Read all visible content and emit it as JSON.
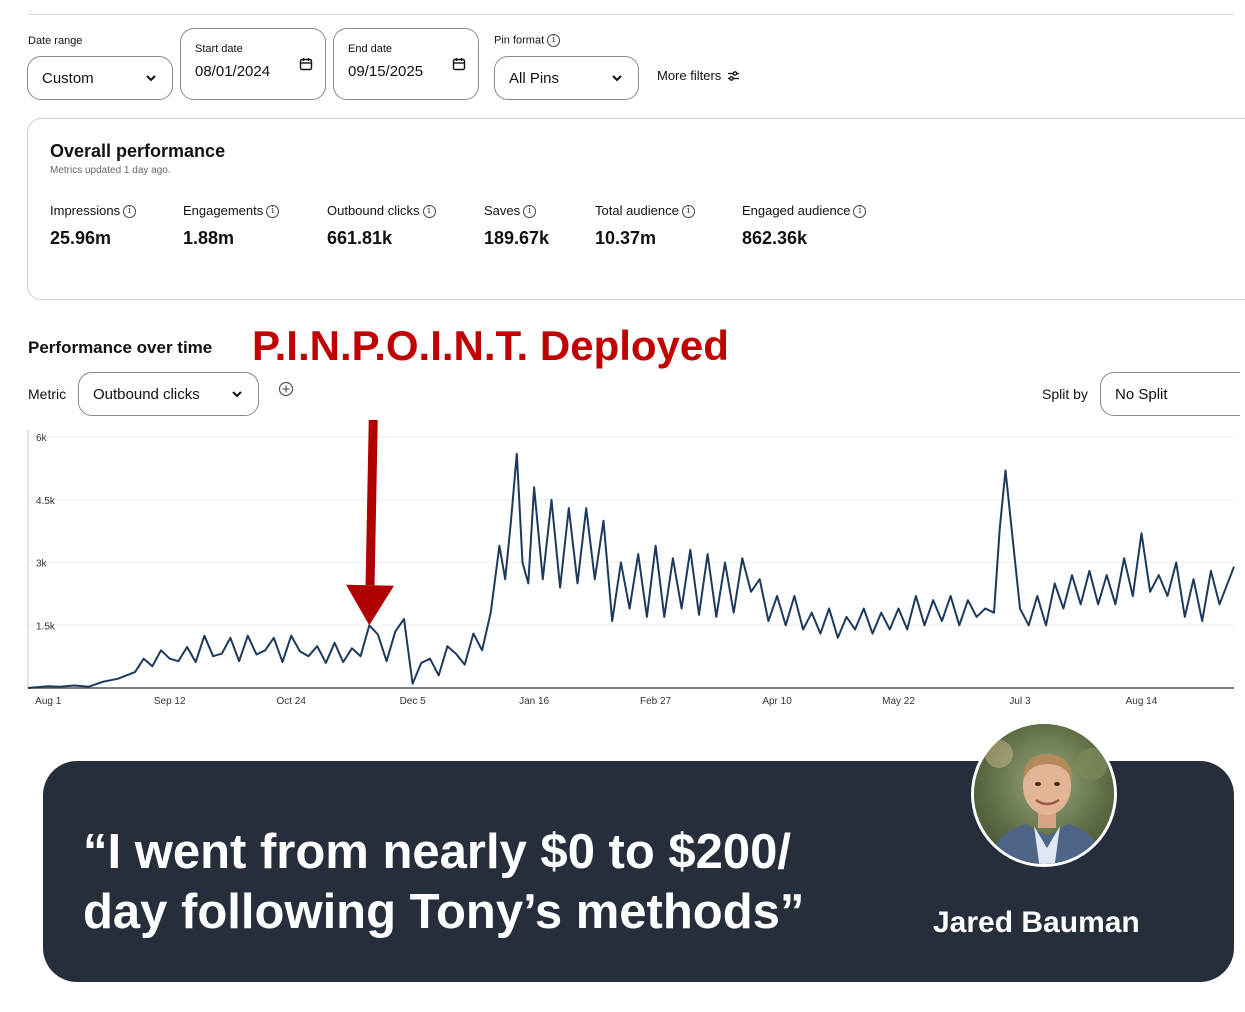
{
  "filters": {
    "date_range_label": "Date range",
    "date_range_value": "Custom",
    "start_date_label": "Start date",
    "start_date_value": "08/01/2024",
    "end_date_label": "End date",
    "end_date_value": "09/15/2025",
    "pin_format_label": "Pin format",
    "pin_format_value": "All Pins",
    "more_filters_label": "More filters"
  },
  "overall": {
    "title": "Overall performance",
    "subtitle": "Metrics updated 1 day ago.",
    "metrics": [
      {
        "label": "Impressions",
        "value": "25.96m"
      },
      {
        "label": "Engagements",
        "value": "1.88m"
      },
      {
        "label": "Outbound clicks",
        "value": "661.81k"
      },
      {
        "label": "Saves",
        "value": "189.67k"
      },
      {
        "label": "Total audience",
        "value": "10.37m"
      },
      {
        "label": "Engaged audience",
        "value": "862.36k"
      }
    ]
  },
  "over_time": {
    "title": "Performance over time",
    "metric_label": "Metric",
    "metric_value": "Outbound clicks",
    "split_label": "Split by",
    "split_value": "No Split"
  },
  "annotation": {
    "headline": "P.I.N.P.O.I.N.T. Deployed",
    "arrow_color": "#b00000"
  },
  "testimonial": {
    "quote_line1": "“I went from nearly $0 to $200/",
    "quote_line2": "day following Tony’s methods”",
    "name": "Jared Bauman"
  },
  "chart_data": {
    "type": "line",
    "x_tick_labels": [
      "Aug 1",
      "Sep 12",
      "Oct 24",
      "Dec 5",
      "Jan 16",
      "Feb 27",
      "Apr 10",
      "May 22",
      "Jul 3",
      "Aug 14"
    ],
    "y_tick_labels": [
      "1.5k",
      "3k",
      "4.5k",
      "6k"
    ],
    "ylim": [
      0,
      6000
    ],
    "x_start": "2024-07-25",
    "x_end": "2025-09-15",
    "grid": true,
    "line_color": "#1d3a5c",
    "annotation_date": "2024-11-20",
    "annotation_value": 1500,
    "series": [
      {
        "name": "Outbound clicks",
        "points": [
          [
            "2024-07-25",
            0
          ],
          [
            "2024-08-01",
            40
          ],
          [
            "2024-08-05",
            30
          ],
          [
            "2024-08-10",
            60
          ],
          [
            "2024-08-15",
            30
          ],
          [
            "2024-08-20",
            150
          ],
          [
            "2024-08-25",
            220
          ],
          [
            "2024-08-28",
            300
          ],
          [
            "2024-08-31",
            380
          ],
          [
            "2024-09-03",
            700
          ],
          [
            "2024-09-06",
            520
          ],
          [
            "2024-09-09",
            900
          ],
          [
            "2024-09-12",
            700
          ],
          [
            "2024-09-15",
            640
          ],
          [
            "2024-09-18",
            980
          ],
          [
            "2024-09-21",
            620
          ],
          [
            "2024-09-24",
            1250
          ],
          [
            "2024-09-27",
            760
          ],
          [
            "2024-09-30",
            820
          ],
          [
            "2024-10-03",
            1200
          ],
          [
            "2024-10-06",
            640
          ],
          [
            "2024-10-09",
            1250
          ],
          [
            "2024-10-12",
            800
          ],
          [
            "2024-10-15",
            900
          ],
          [
            "2024-10-18",
            1200
          ],
          [
            "2024-10-21",
            620
          ],
          [
            "2024-10-24",
            1250
          ],
          [
            "2024-10-27",
            880
          ],
          [
            "2024-10-30",
            760
          ],
          [
            "2024-11-02",
            1000
          ],
          [
            "2024-11-05",
            600
          ],
          [
            "2024-11-08",
            1080
          ],
          [
            "2024-11-11",
            620
          ],
          [
            "2024-11-14",
            950
          ],
          [
            "2024-11-17",
            760
          ],
          [
            "2024-11-20",
            1500
          ],
          [
            "2024-11-23",
            1280
          ],
          [
            "2024-11-26",
            640
          ],
          [
            "2024-11-29",
            1350
          ],
          [
            "2024-12-02",
            1650
          ],
          [
            "2024-12-05",
            100
          ],
          [
            "2024-12-08",
            600
          ],
          [
            "2024-12-11",
            700
          ],
          [
            "2024-12-14",
            300
          ],
          [
            "2024-12-17",
            1000
          ],
          [
            "2024-12-20",
            820
          ],
          [
            "2024-12-23",
            560
          ],
          [
            "2024-12-26",
            1300
          ],
          [
            "2024-12-29",
            900
          ],
          [
            "2025-01-01",
            1800
          ],
          [
            "2025-01-04",
            3400
          ],
          [
            "2025-01-06",
            2600
          ],
          [
            "2025-01-08",
            4000
          ],
          [
            "2025-01-10",
            5600
          ],
          [
            "2025-01-12",
            3000
          ],
          [
            "2025-01-14",
            2500
          ],
          [
            "2025-01-16",
            4800
          ],
          [
            "2025-01-19",
            2600
          ],
          [
            "2025-01-22",
            4500
          ],
          [
            "2025-01-25",
            2400
          ],
          [
            "2025-01-28",
            4300
          ],
          [
            "2025-01-31",
            2500
          ],
          [
            "2025-02-03",
            4300
          ],
          [
            "2025-02-06",
            2600
          ],
          [
            "2025-02-09",
            4000
          ],
          [
            "2025-02-12",
            1600
          ],
          [
            "2025-02-15",
            3000
          ],
          [
            "2025-02-18",
            1900
          ],
          [
            "2025-02-21",
            3200
          ],
          [
            "2025-02-24",
            1700
          ],
          [
            "2025-02-27",
            3400
          ],
          [
            "2025-03-02",
            1700
          ],
          [
            "2025-03-05",
            3100
          ],
          [
            "2025-03-08",
            1900
          ],
          [
            "2025-03-11",
            3300
          ],
          [
            "2025-03-14",
            1750
          ],
          [
            "2025-03-17",
            3200
          ],
          [
            "2025-03-20",
            1700
          ],
          [
            "2025-03-23",
            3000
          ],
          [
            "2025-03-26",
            1800
          ],
          [
            "2025-03-29",
            3100
          ],
          [
            "2025-04-01",
            2300
          ],
          [
            "2025-04-04",
            2600
          ],
          [
            "2025-04-07",
            1600
          ],
          [
            "2025-04-10",
            2200
          ],
          [
            "2025-04-13",
            1500
          ],
          [
            "2025-04-16",
            2200
          ],
          [
            "2025-04-19",
            1400
          ],
          [
            "2025-04-22",
            1800
          ],
          [
            "2025-04-25",
            1300
          ],
          [
            "2025-04-28",
            1900
          ],
          [
            "2025-05-01",
            1200
          ],
          [
            "2025-05-04",
            1700
          ],
          [
            "2025-05-07",
            1400
          ],
          [
            "2025-05-10",
            1900
          ],
          [
            "2025-05-13",
            1300
          ],
          [
            "2025-05-16",
            1800
          ],
          [
            "2025-05-19",
            1400
          ],
          [
            "2025-05-22",
            1900
          ],
          [
            "2025-05-25",
            1400
          ],
          [
            "2025-05-28",
            2200
          ],
          [
            "2025-05-31",
            1500
          ],
          [
            "2025-06-03",
            2100
          ],
          [
            "2025-06-06",
            1600
          ],
          [
            "2025-06-09",
            2200
          ],
          [
            "2025-06-12",
            1500
          ],
          [
            "2025-06-15",
            2100
          ],
          [
            "2025-06-18",
            1700
          ],
          [
            "2025-06-21",
            1900
          ],
          [
            "2025-06-24",
            1800
          ],
          [
            "2025-06-26",
            3800
          ],
          [
            "2025-06-28",
            5200
          ],
          [
            "2025-07-03",
            1900
          ],
          [
            "2025-07-06",
            1500
          ],
          [
            "2025-07-09",
            2200
          ],
          [
            "2025-07-12",
            1500
          ],
          [
            "2025-07-15",
            2500
          ],
          [
            "2025-07-18",
            1900
          ],
          [
            "2025-07-21",
            2700
          ],
          [
            "2025-07-24",
            2000
          ],
          [
            "2025-07-27",
            2800
          ],
          [
            "2025-07-30",
            2000
          ],
          [
            "2025-08-02",
            2700
          ],
          [
            "2025-08-05",
            2000
          ],
          [
            "2025-08-08",
            3100
          ],
          [
            "2025-08-11",
            2200
          ],
          [
            "2025-08-14",
            3700
          ],
          [
            "2025-08-17",
            2300
          ],
          [
            "2025-08-20",
            2700
          ],
          [
            "2025-08-23",
            2200
          ],
          [
            "2025-08-26",
            3000
          ],
          [
            "2025-08-29",
            1700
          ],
          [
            "2025-09-01",
            2600
          ],
          [
            "2025-09-04",
            1600
          ],
          [
            "2025-09-07",
            2800
          ],
          [
            "2025-09-10",
            2000
          ],
          [
            "2025-09-15",
            2900
          ]
        ]
      }
    ]
  }
}
